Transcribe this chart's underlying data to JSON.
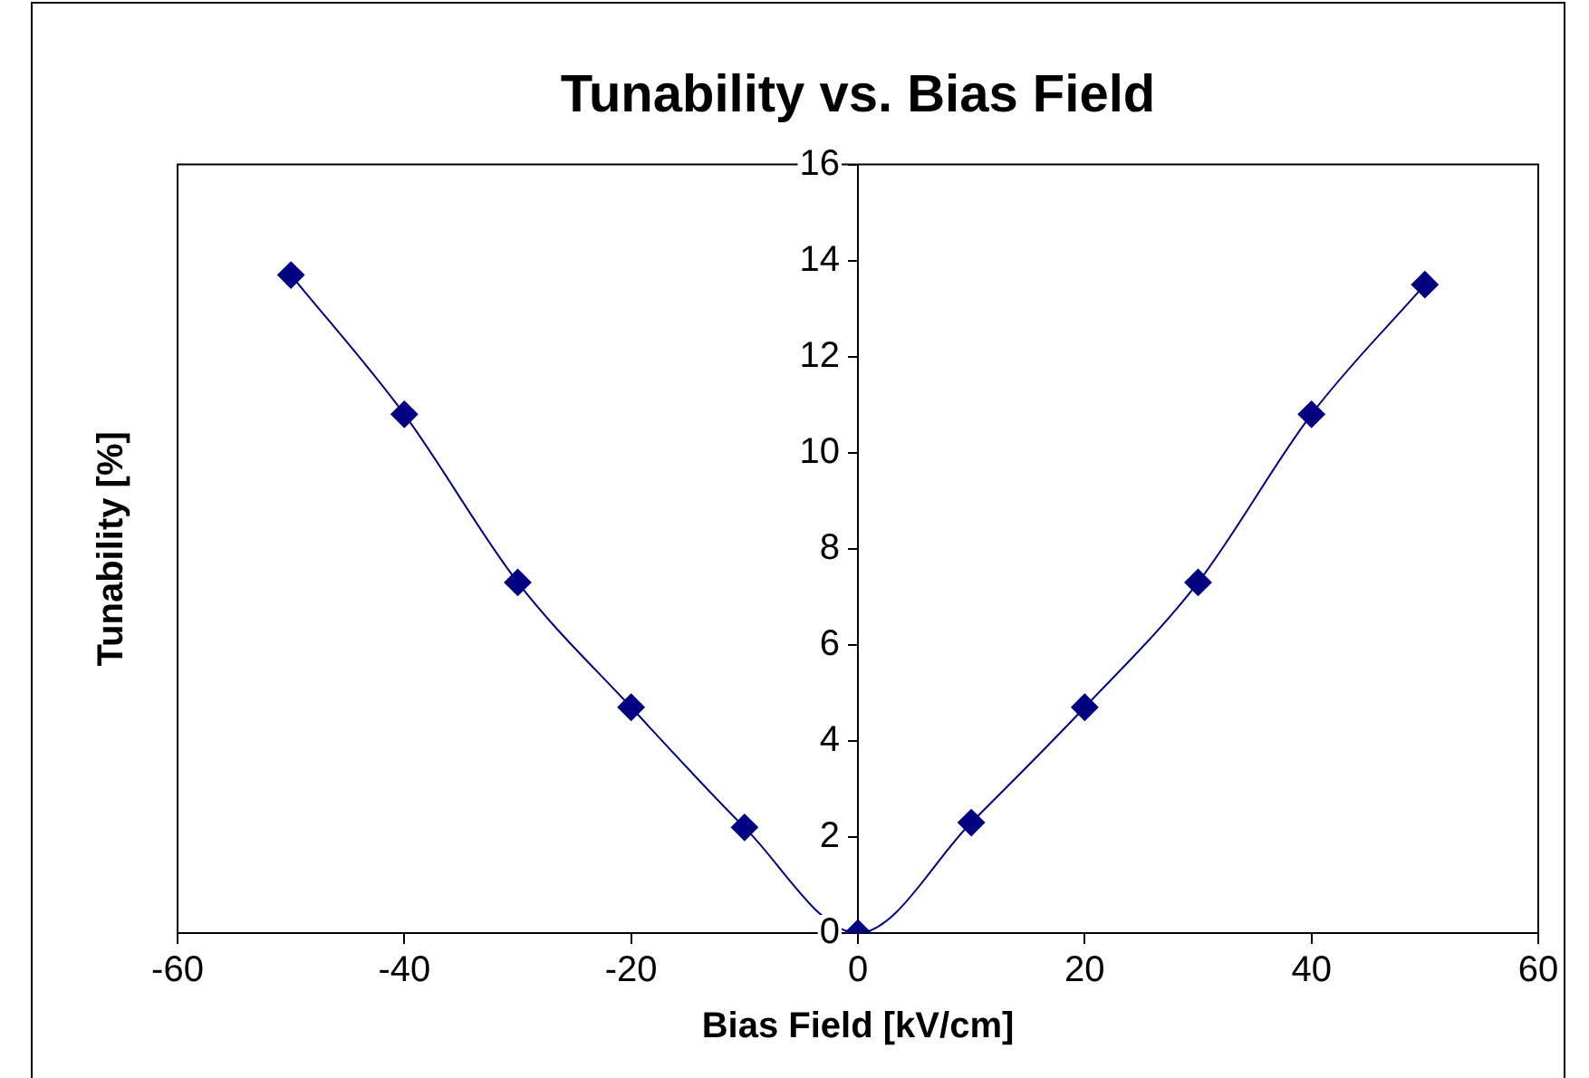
{
  "chart_data": {
    "type": "line",
    "title": "Tunability vs. Bias Field",
    "xlabel": "Bias Field [kV/cm]",
    "ylabel": "Tunability [%]",
    "x": [
      -50,
      -40,
      -30,
      -20,
      -10,
      0,
      10,
      20,
      30,
      40,
      50
    ],
    "series": [
      {
        "color": "#000080",
        "values": [
          13.7,
          10.8,
          7.3,
          4.7,
          2.2,
          0,
          2.3,
          4.7,
          7.3,
          10.8,
          13.5
        ]
      }
    ],
    "xlim": [
      -60,
      60
    ],
    "xticks": [
      -60,
      -40,
      -20,
      0,
      20,
      40,
      60
    ],
    "ylim": [
      0,
      16
    ],
    "yticks": [
      0,
      2,
      4,
      6,
      8,
      10,
      12,
      14,
      16
    ],
    "grid": false,
    "legend": false,
    "marker": "diamond",
    "line_style": "solid"
  }
}
